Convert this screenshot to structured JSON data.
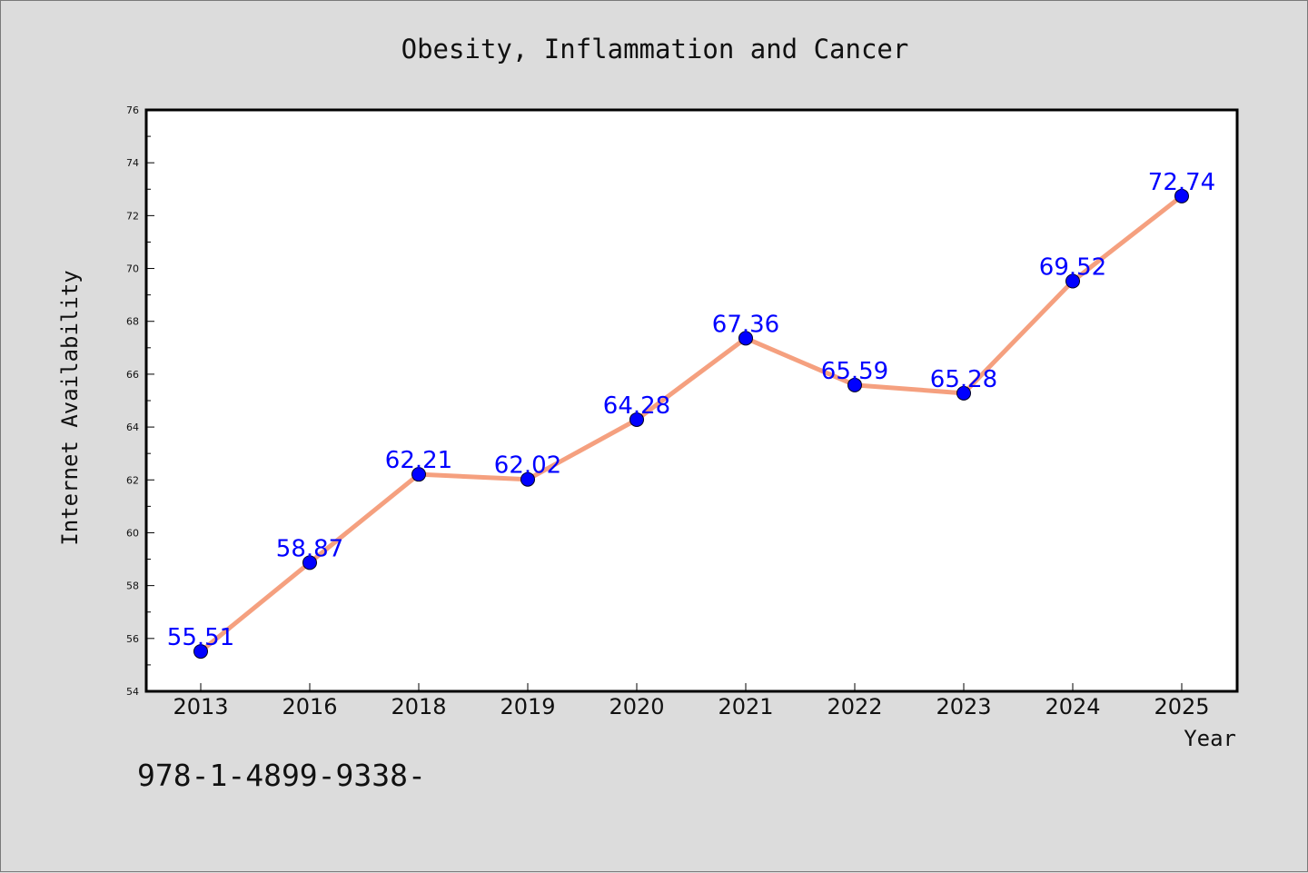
{
  "chart_data": {
    "type": "line",
    "title": "Obesity, Inflammation and Cancer",
    "xlabel": "Year",
    "ylabel": "Internet Availability",
    "categories": [
      "2013",
      "2016",
      "2018",
      "2019",
      "2020",
      "2021",
      "2022",
      "2023",
      "2024",
      "2025"
    ],
    "series": [
      {
        "values": [
          55.51,
          58.87,
          62.21,
          62.02,
          64.28,
          67.36,
          65.59,
          65.28,
          69.52,
          72.74
        ],
        "labels": [
          "55.51",
          "58.87",
          "62.21",
          "62.02",
          "64.28",
          "67.36",
          "65.59",
          "65.28",
          "69.52",
          "72.74"
        ]
      }
    ],
    "ylim": [
      54,
      76
    ],
    "yticks": [
      "54",
      "56",
      "58",
      "60",
      "62",
      "64",
      "66",
      "68",
      "70",
      "72",
      "74",
      "76"
    ],
    "grid": false,
    "legend": "none",
    "colors": {
      "line": "#f5a07f",
      "marker": "#0000ff",
      "data_label": "#0000ff",
      "plot_bg": "#ffffff",
      "page_bg": "#dcdcdc"
    }
  },
  "footer": {
    "isbn": "978-1-4899-9338-"
  }
}
